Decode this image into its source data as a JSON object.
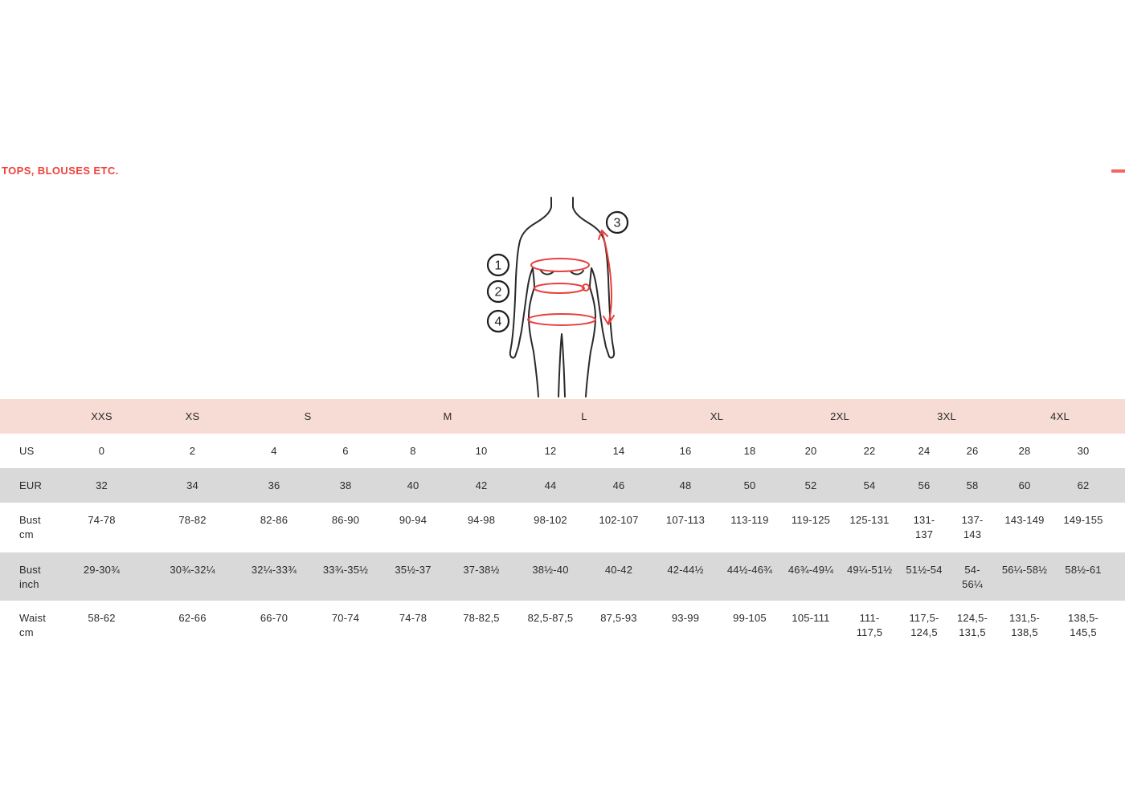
{
  "page": {
    "heading": "TOPS, BLOUSES ETC.",
    "colors": {
      "accent": "#f0413b",
      "header-bg": "#f6dcd5",
      "stripe-bg": "#d9d9d9"
    }
  },
  "diagram": {
    "marker1": "1",
    "marker2": "2",
    "marker3": "3",
    "marker4": "4"
  },
  "size_table": {
    "size_groups": [
      {
        "label": "XXS",
        "span": 1
      },
      {
        "label": "XS",
        "span": 1
      },
      {
        "label": "S",
        "span": 2
      },
      {
        "label": "M",
        "span": 2
      },
      {
        "label": "L",
        "span": 2
      },
      {
        "label": "XL",
        "span": 2
      },
      {
        "label": "2XL",
        "span": 2
      },
      {
        "label": "3XL",
        "span": 2
      },
      {
        "label": "4XL",
        "span": 2
      }
    ],
    "rows": [
      {
        "label": "US",
        "label2": "",
        "values": [
          "0",
          "2",
          "4",
          "6",
          "8",
          "10",
          "12",
          "14",
          "16",
          "18",
          "20",
          "22",
          "24",
          "26",
          "28",
          "30"
        ]
      },
      {
        "label": "EUR",
        "label2": "",
        "values": [
          "32",
          "34",
          "36",
          "38",
          "40",
          "42",
          "44",
          "46",
          "48",
          "50",
          "52",
          "54",
          "56",
          "58",
          "60",
          "62"
        ]
      },
      {
        "label": "Bust",
        "label2": "cm",
        "values": [
          "74-78",
          "78-82",
          "82-86",
          "86-90",
          "90-94",
          "94-98",
          "98-102",
          "102-107",
          "107-113",
          "113-119",
          "119-125",
          "125-131",
          "131-137",
          "137-143",
          "143-149",
          "149-155"
        ]
      },
      {
        "label": "Bust",
        "label2": "inch",
        "values": [
          "29-30¾",
          "30¾-32¼",
          "32¼-33¾",
          "33¾-35½",
          "35½-37",
          "37-38½",
          "38½-40",
          "40-42",
          "42-44½",
          "44½-46¾",
          "46¾-49¼",
          "49¼-51½",
          "51½-54",
          "54-56¼",
          "56¼-58½",
          "58½-61"
        ]
      },
      {
        "label": "Waist",
        "label2": "cm",
        "values": [
          "58-62",
          "62-66",
          "66-70",
          "70-74",
          "74-78",
          "78-82,5",
          "82,5-87,5",
          "87,5-93",
          "93-99",
          "99-105",
          "105-111",
          "111-117,5",
          "117,5-124,5",
          "124,5-131,5",
          "131,5-138,5",
          "138,5-145,5"
        ]
      }
    ]
  }
}
